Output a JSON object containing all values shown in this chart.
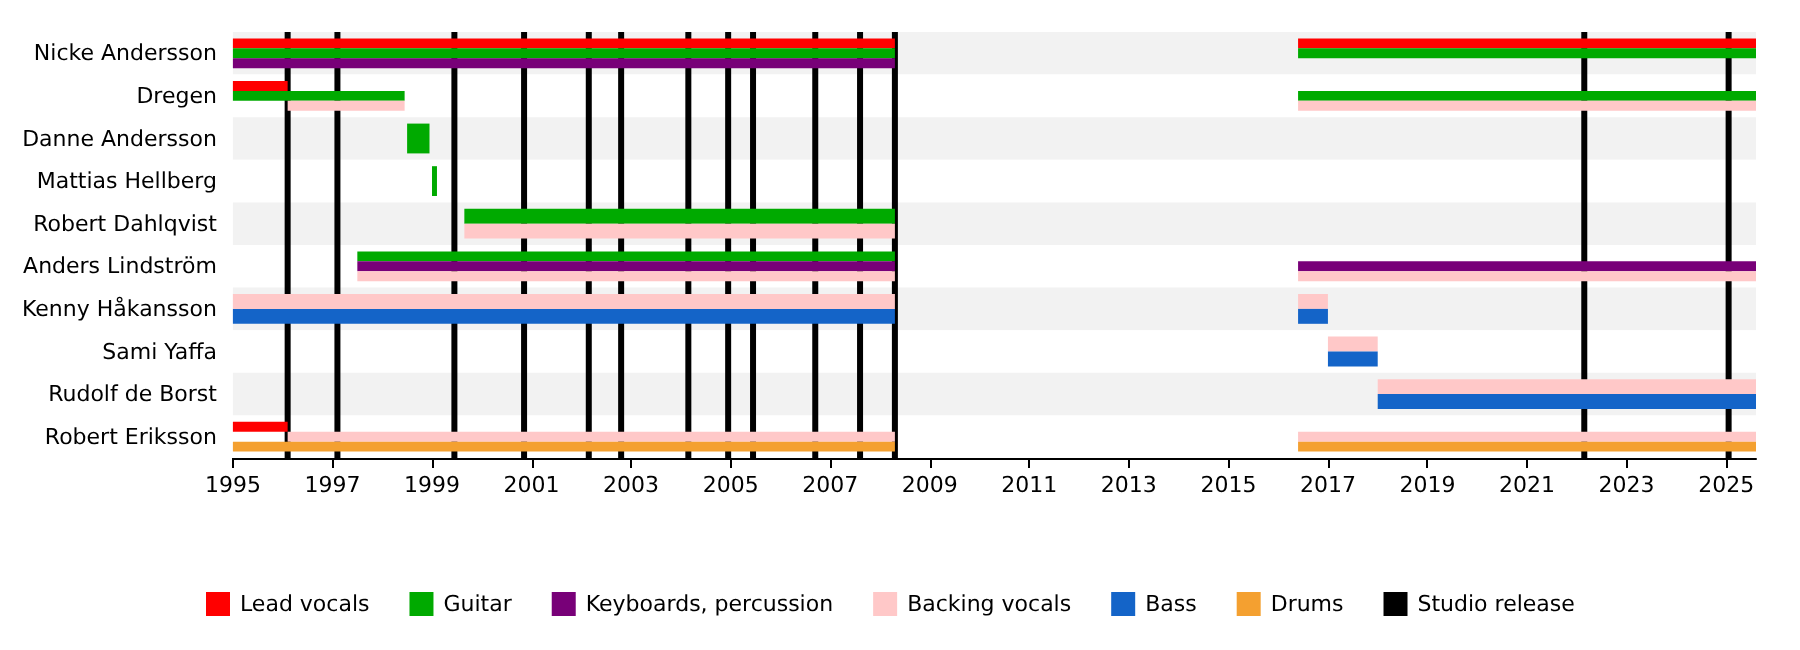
{
  "chart_data": {
    "type": "bar",
    "orientation": "horizontal",
    "categories": [
      "Nicke Andersson",
      "Dregen",
      "Danne Andersson",
      "Mattias Hellberg",
      "Robert Dahlqvist",
      "Anders Lindström",
      "Kenny Håkansson",
      "Sami Yaffa",
      "Rudolf de Borst",
      "Robert Eriksson"
    ],
    "series": [
      {
        "name": "Lead vocals",
        "color": "#ff0000",
        "base": [
          1995,
          1995,
          null,
          null,
          null,
          null,
          null,
          null,
          null,
          1995
        ],
        "values": [
          13.3,
          1.1,
          null,
          null,
          null,
          null,
          null,
          null,
          null,
          1.1
        ]
      },
      {
        "color": "#ff0000",
        "base": [
          2016.4,
          null,
          null,
          null,
          null,
          null,
          null,
          null,
          null,
          null
        ],
        "values": [
          9.2,
          null,
          null,
          null,
          null,
          null,
          null,
          null,
          null,
          null
        ]
      },
      {
        "name": "Guitar",
        "color": "#00aa00",
        "base": [
          1995,
          1995,
          1998.5,
          1999.0,
          1999.65,
          1997.5,
          null,
          null,
          null,
          null
        ],
        "values": [
          13.3,
          3.45,
          0.45,
          0.1,
          8.65,
          10.8,
          null,
          null,
          null,
          null
        ]
      },
      {
        "color": "#00aa00",
        "base": [
          2016.4,
          2016.4,
          null,
          null,
          null,
          null,
          null,
          null,
          null,
          null
        ],
        "values": [
          9.2,
          9.2,
          null,
          null,
          null,
          null,
          null,
          null,
          null,
          null
        ]
      },
      {
        "name": "Keyboards, percussion",
        "color": "#780078",
        "base": [
          1995,
          null,
          null,
          null,
          null,
          1997.5,
          null,
          null,
          null,
          null
        ],
        "values": [
          13.3,
          null,
          null,
          null,
          null,
          10.8,
          null,
          null,
          null,
          null
        ]
      },
      {
        "color": "#780078",
        "base": [
          null,
          null,
          null,
          null,
          null,
          2016.4,
          null,
          null,
          null,
          null
        ],
        "values": [
          null,
          null,
          null,
          null,
          null,
          9.2,
          null,
          null,
          null,
          null
        ]
      },
      {
        "name": "Backing vocals",
        "color": "#ffc8c8",
        "base": [
          null,
          1996.1,
          null,
          null,
          1999.65,
          1997.5,
          1995,
          null,
          null,
          1996.1
        ],
        "values": [
          null,
          2.35,
          null,
          null,
          8.65,
          10.8,
          13.3,
          null,
          null,
          12.2
        ]
      },
      {
        "color": "#ffc8c8",
        "base": [
          null,
          2016.4,
          null,
          null,
          null,
          2016.4,
          2016.4,
          2017.0,
          2018.0,
          2016.4
        ],
        "values": [
          null,
          9.2,
          null,
          null,
          null,
          9.2,
          0.6,
          1.0,
          7.6,
          9.2
        ]
      },
      {
        "name": "Bass",
        "color": "#1464c8",
        "base": [
          null,
          null,
          null,
          null,
          null,
          null,
          1995,
          null,
          null,
          null
        ],
        "values": [
          null,
          null,
          null,
          null,
          null,
          null,
          13.3,
          null,
          null,
          null
        ]
      },
      {
        "color": "#1464c8",
        "base": [
          null,
          null,
          null,
          null,
          null,
          null,
          2016.4,
          2017.0,
          2018.0,
          null
        ],
        "values": [
          null,
          null,
          null,
          null,
          null,
          null,
          0.6,
          1.0,
          7.6,
          null
        ]
      },
      {
        "name": "Drums",
        "color": "#f4a030",
        "base": [
          null,
          null,
          null,
          null,
          null,
          null,
          null,
          null,
          null,
          1995
        ],
        "values": [
          null,
          null,
          null,
          null,
          null,
          null,
          null,
          null,
          null,
          13.3
        ]
      },
      {
        "color": "#f4a030",
        "base": [
          null,
          null,
          null,
          null,
          null,
          null,
          null,
          null,
          null,
          2016.4
        ],
        "values": [
          null,
          null,
          null,
          null,
          null,
          null,
          null,
          null,
          null,
          9.2
        ]
      }
    ],
    "xlim": [
      1995,
      2025.6
    ],
    "xticks": [
      1995,
      1997,
      1999,
      2001,
      2003,
      2005,
      2007,
      2009,
      2011,
      2013,
      2015,
      2017,
      2019,
      2021,
      2023,
      2025
    ],
    "ref_lines": [
      {
        "axis": "x",
        "value": 1996.1,
        "label": "Studio release",
        "color": "#000000"
      },
      {
        "axis": "x",
        "value": 1997.1,
        "label": null,
        "color": "#000000"
      },
      {
        "axis": "x",
        "value": 1999.45,
        "label": null,
        "color": "#000000"
      },
      {
        "axis": "x",
        "value": 2000.85,
        "label": null,
        "color": "#000000"
      },
      {
        "axis": "x",
        "value": 2002.15,
        "label": null,
        "color": "#000000"
      },
      {
        "axis": "x",
        "value": 2002.8,
        "label": null,
        "color": "#000000"
      },
      {
        "axis": "x",
        "value": 2004.15,
        "label": null,
        "color": "#000000"
      },
      {
        "axis": "x",
        "value": 2004.95,
        "label": null,
        "color": "#000000"
      },
      {
        "axis": "x",
        "value": 2005.45,
        "label": null,
        "color": "#000000"
      },
      {
        "axis": "x",
        "value": 2006.7,
        "label": null,
        "color": "#000000"
      },
      {
        "axis": "x",
        "value": 2007.6,
        "label": null,
        "color": "#000000"
      },
      {
        "axis": "x",
        "value": 2008.3,
        "label": null,
        "color": "#000000"
      },
      {
        "axis": "x",
        "value": 2022.15,
        "label": null,
        "color": "#000000"
      },
      {
        "axis": "x",
        "value": 2025.05,
        "label": null,
        "color": "#000000"
      }
    ],
    "legend": "bottom"
  }
}
